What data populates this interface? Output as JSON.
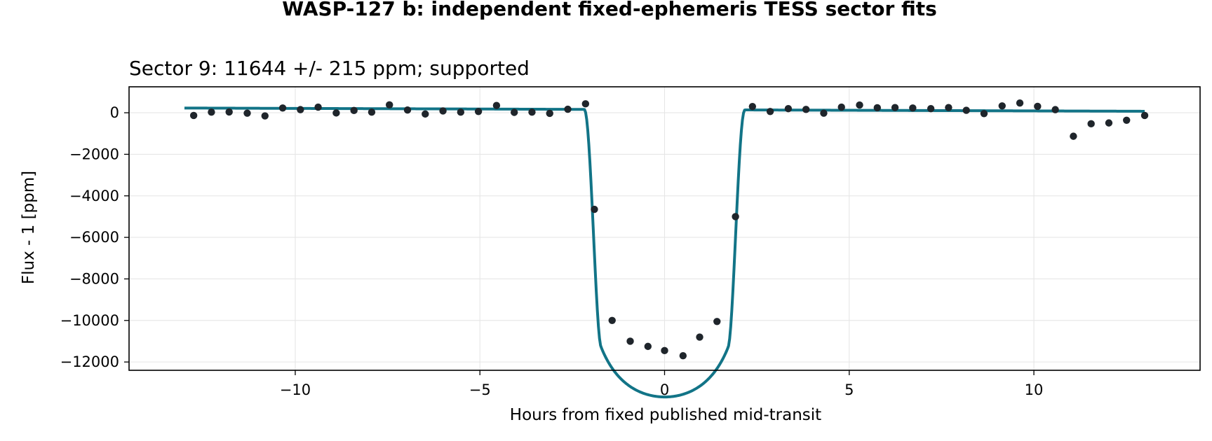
{
  "figure": {
    "suptitle": "WASP-127 b: independent fixed-ephemeris TESS sector fits"
  },
  "colors": {
    "model": "#127487",
    "points": "#1f252b",
    "grid": "#e6e6e6",
    "frame": "#000000"
  },
  "chart_data": {
    "type": "scatter",
    "title": "Sector 9: 11644 +/- 215 ppm; supported",
    "xlabel": "Hours from fixed published mid-transit",
    "ylabel": "Flux - 1 [ppm]",
    "xlim": [
      -14.5,
      14.5
    ],
    "ylim": [
      -12400,
      1250
    ],
    "xticks": [
      -10,
      -5,
      0,
      5,
      10
    ],
    "xtick_labels": [
      "−10",
      "−5",
      "0",
      "5",
      "10"
    ],
    "yticks": [
      0,
      -2000,
      -4000,
      -6000,
      -8000,
      -10000,
      -12000
    ],
    "ytick_labels": [
      "0",
      "−2000",
      "−4000",
      "−6000",
      "−8000",
      "−10000",
      "−12000"
    ],
    "grid": true,
    "legend": "none",
    "series": [
      {
        "kind": "points",
        "x": [
          -12.75,
          -12.27,
          -11.79,
          -11.3,
          -10.82,
          -10.34,
          -9.86,
          -9.38,
          -8.89,
          -8.41,
          -7.93,
          -7.45,
          -6.96,
          -6.48,
          -6.0,
          -5.52,
          -5.04,
          -4.55,
          -4.07,
          -3.59,
          -3.11,
          -2.62,
          -2.14,
          -1.9,
          -1.42,
          -0.93,
          -0.45,
          0.0,
          0.5,
          0.95,
          1.42,
          1.92,
          2.38,
          2.86,
          3.35,
          3.83,
          4.31,
          4.79,
          5.28,
          5.76,
          6.24,
          6.72,
          7.21,
          7.69,
          8.17,
          8.65,
          9.14,
          9.62,
          10.1,
          10.58,
          11.07,
          11.55,
          12.03,
          12.51,
          13.0
        ],
        "y": [
          -130,
          30,
          40,
          -20,
          -150,
          230,
          150,
          270,
          -10,
          110,
          30,
          380,
          130,
          -60,
          90,
          30,
          60,
          350,
          20,
          30,
          -30,
          170,
          430,
          -4650,
          -10000,
          -11000,
          -11250,
          -11450,
          -11700,
          -10800,
          -10050,
          -5000,
          300,
          60,
          200,
          160,
          -20,
          270,
          370,
          240,
          250,
          230,
          200,
          250,
          120,
          -40,
          330,
          470,
          310,
          150,
          -1130,
          -530,
          -490,
          -360,
          -130
        ]
      },
      {
        "kind": "model",
        "x_range": [
          -13.0,
          13.0
        ],
        "baseline": 150,
        "baseline_slope": -6,
        "depth": 11644,
        "depth_err": 215,
        "t14_hours": 4.35,
        "ingress_hours": 0.45,
        "limb_darkening": [
          0.35,
          0.25
        ]
      }
    ]
  }
}
